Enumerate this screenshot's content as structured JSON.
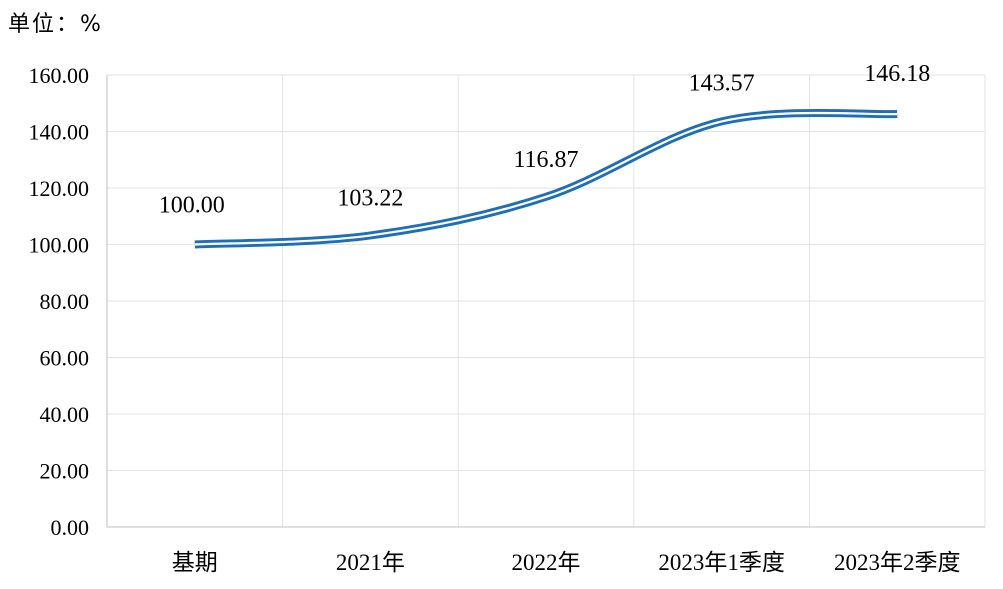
{
  "unit_label": "单位：%",
  "chart_data": {
    "type": "line",
    "title": "",
    "xlabel": "",
    "ylabel": "",
    "ylim": [
      0,
      160
    ],
    "y_ticks": [
      "0.00",
      "20.00",
      "40.00",
      "60.00",
      "80.00",
      "100.00",
      "120.00",
      "140.00",
      "160.00"
    ],
    "categories": [
      "基期",
      "2021年",
      "2022年",
      "2023年1季度",
      "2023年2季度"
    ],
    "series": [
      {
        "values": [
          100.0,
          103.22,
          116.87,
          143.57,
          146.18
        ],
        "data_labels": [
          "100.00",
          "103.22",
          "116.87",
          "143.57",
          "146.18"
        ],
        "color": "#1f6fb8"
      }
    ],
    "grid": true,
    "legend": "none"
  }
}
